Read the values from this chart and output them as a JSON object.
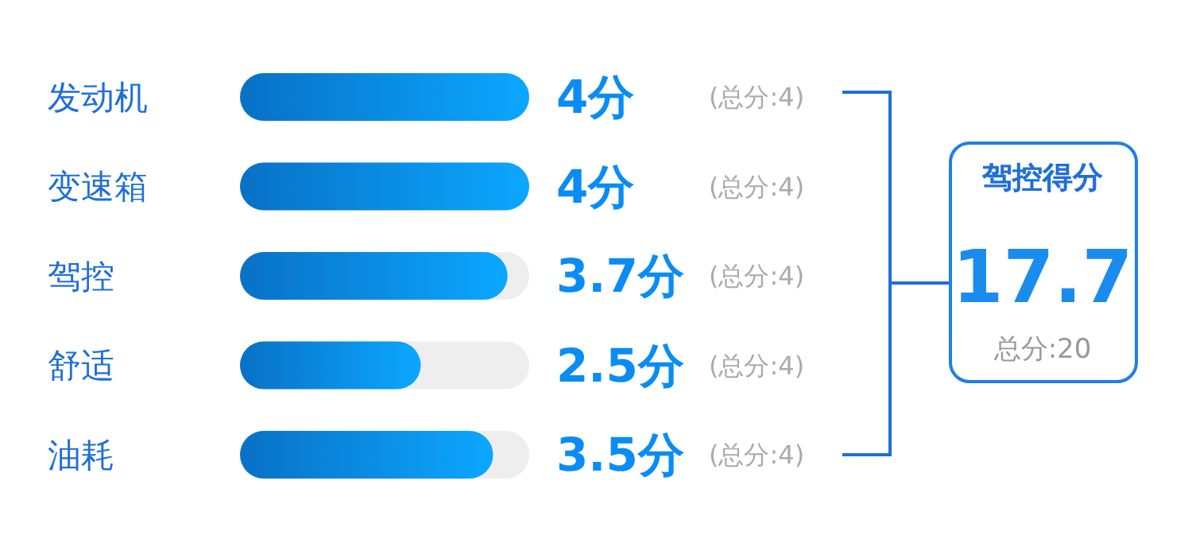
{
  "chart_data": [
    {
      "type": "bar",
      "orientation": "horizontal",
      "categories": [
        "发动机",
        "变速箱",
        "驾控",
        "舒适",
        "油耗"
      ],
      "values": [
        4,
        4,
        3.7,
        2.5,
        3.5
      ],
      "value_labels": [
        "4分",
        "4分",
        "3.7分",
        "2.5分",
        "3.5分"
      ],
      "color": "#0a8cf5",
      "xlim": [
        0,
        4
      ],
      "tick_labels": "y",
      "annotations": [
        "(总分:4)",
        "(总分:4)",
        "(总分:4)",
        "(总分:4)",
        "(总分:4)"
      ]
    },
    {
      "type": "other",
      "title": "驾控得分",
      "annotations": [
        "17.7",
        "总分:20"
      ]
    }
  ]
}
